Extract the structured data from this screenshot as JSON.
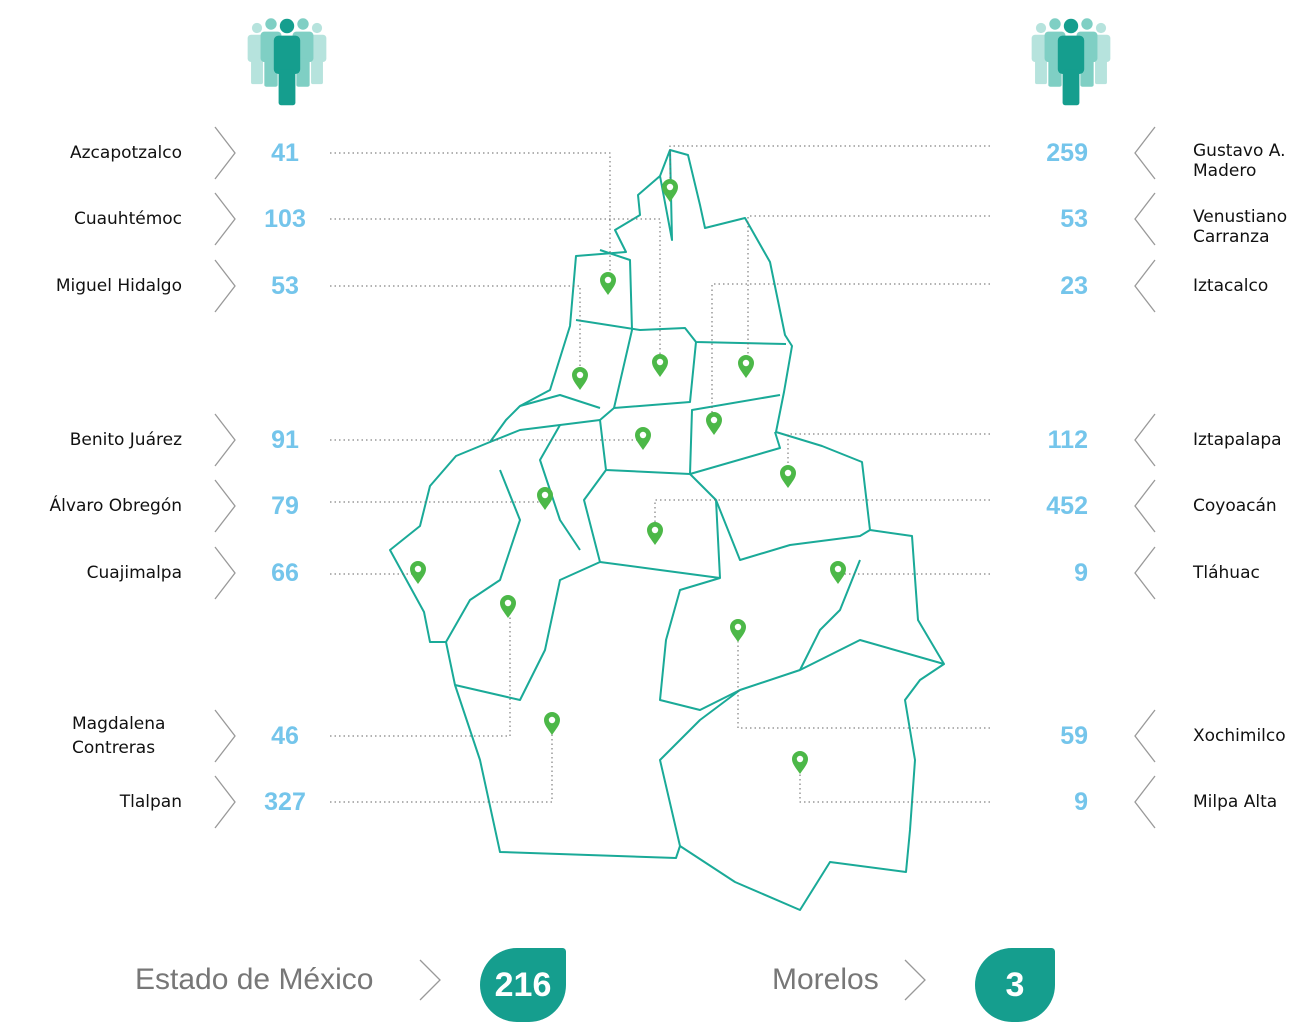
{
  "left": [
    {
      "name": "Azcapotzalco",
      "value": 41
    },
    {
      "name": "Cuauhtémoc",
      "value": 103
    },
    {
      "name": "Miguel Hidalgo",
      "value": 53
    },
    {
      "name": "Benito Juárez",
      "value": 91
    },
    {
      "name": "Álvaro Obregón",
      "value": 79
    },
    {
      "name": "Cuajimalpa",
      "value": 66
    },
    {
      "name": "Magdalena Contreras",
      "value": 46
    },
    {
      "name": "Tlalpan",
      "value": 327
    }
  ],
  "right": [
    {
      "name": "Gustavo A. Madero",
      "value": 259
    },
    {
      "name": "Venustiano Carranza",
      "value": 53
    },
    {
      "name": "Iztacalco",
      "value": 23
    },
    {
      "name": "Iztapalapa",
      "value": 112
    },
    {
      "name": "Coyoacán",
      "value": 452
    },
    {
      "name": "Tláhuac",
      "value": 9
    },
    {
      "name": "Xochimilco",
      "value": 59
    },
    {
      "name": "Milpa Alta",
      "value": 9
    }
  ],
  "bottom": [
    {
      "name": "Estado de México",
      "value": 216
    },
    {
      "name": "Morelos",
      "value": 3
    }
  ]
}
